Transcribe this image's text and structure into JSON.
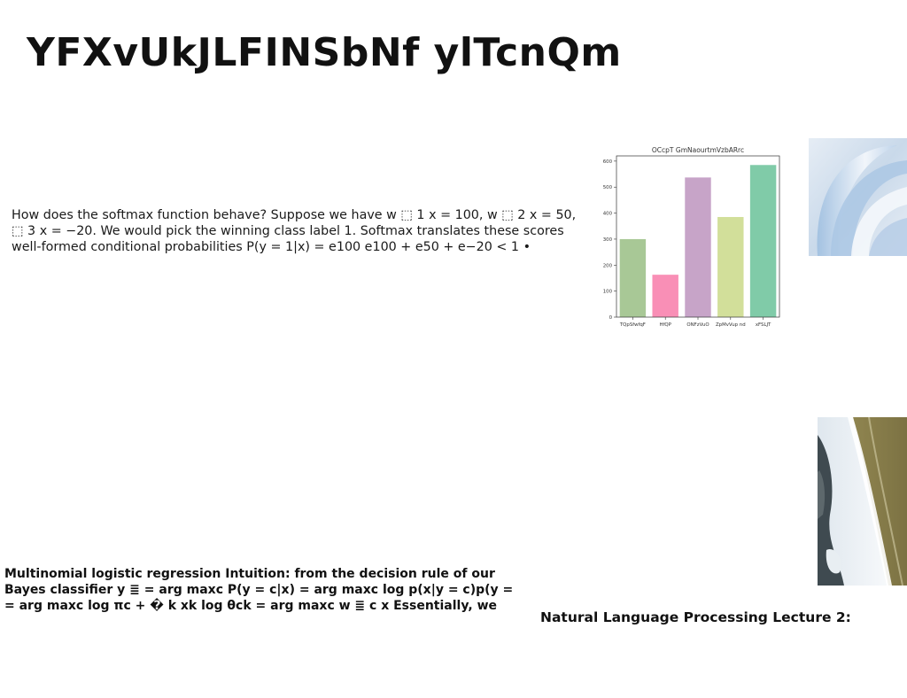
{
  "slide": {
    "title": "YFXvUkJLFINSbNf ylTcnQm",
    "softmax_lines": [
      "How does the softmax function behave? Suppose we have w ⬚ 1 x = 100, w ⬚ 2 x = 50,",
      "⬚ 3 x = −20. We would pick the winning class label 1. Softmax translates these scores",
      "well-formed conditional probabilities P(y = 1|x) = e100 e100 + e50 + e−20 < 1 •"
    ],
    "multinomial_lines": [
      "Multinomial logistic regression Intuition: from the decision rule of our",
      "Bayes classifier y ≣ = arg maxc P(y = c|x) = arg maxc log p(x|y = c)p(y =",
      "= arg maxc log πc + � k xk log θck = arg maxc w ≣ c x Essentially, we"
    ],
    "footer_label": "Natural Language Processing Lecture 2:"
  },
  "chart_data": {
    "type": "bar",
    "title": "OCcpT GmNaourtmVzbARrc",
    "categories": [
      "TQpSfwfqF",
      "HfQP",
      "ONFzVuO",
      "ZpMvVup nd",
      "xFSLJT"
    ],
    "values": [
      300,
      163,
      537,
      385,
      585
    ],
    "colors": [
      "#a8c896",
      "#f98fb6",
      "#c7a4c8",
      "#d2df9a",
      "#80cba8"
    ],
    "ylim": [
      0,
      620
    ],
    "yticks": [
      0,
      100,
      200,
      300,
      400,
      500,
      600
    ],
    "xlabel": "",
    "ylabel": "",
    "grid": false
  },
  "images": {
    "abstract": {
      "name": "abstract-swirl-image",
      "palette": [
        "#dbe6f1",
        "#aac6e2",
        "#f4f8fc"
      ]
    },
    "coast": {
      "name": "coastline-aerial-image",
      "palette": [
        "#8a7f4b",
        "#f2f5f7",
        "#3f4a4e"
      ]
    }
  }
}
